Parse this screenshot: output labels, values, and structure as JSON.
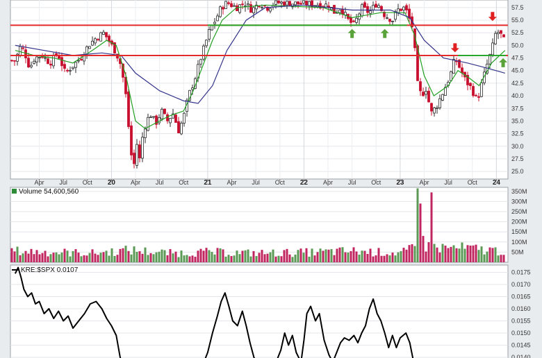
{
  "chart_data": [
    {
      "type": "candlestick",
      "panel": "price",
      "ylim": [
        23.5,
        59
      ],
      "y_ticks": [
        "25.0",
        "27.5",
        "30.0",
        "32.5",
        "35.0",
        "37.5",
        "40.0",
        "42.5",
        "45.0",
        "47.5",
        "50.0",
        "52.5",
        "55.0",
        "57.5"
      ],
      "x_labels": [
        {
          "t": 2019.25,
          "text": "Apr",
          "bold": false
        },
        {
          "t": 2019.5,
          "text": "Jul",
          "bold": false
        },
        {
          "t": 2019.75,
          "text": "Oct",
          "bold": false
        },
        {
          "t": 2020.0,
          "text": "20",
          "bold": true
        },
        {
          "t": 2020.25,
          "text": "Apr",
          "bold": false
        },
        {
          "t": 2020.5,
          "text": "Jul",
          "bold": false
        },
        {
          "t": 2020.75,
          "text": "Oct",
          "bold": false
        },
        {
          "t": 2021.0,
          "text": "21",
          "bold": true
        },
        {
          "t": 2021.25,
          "text": "Apr",
          "bold": false
        },
        {
          "t": 2021.5,
          "text": "Jul",
          "bold": false
        },
        {
          "t": 2021.75,
          "text": "Oct",
          "bold": false
        },
        {
          "t": 2022.0,
          "text": "22",
          "bold": true
        },
        {
          "t": 2022.25,
          "text": "Apr",
          "bold": false
        },
        {
          "t": 2022.5,
          "text": "Jul",
          "bold": false
        },
        {
          "t": 2022.75,
          "text": "Oct",
          "bold": false
        },
        {
          "t": 2023.0,
          "text": "23",
          "bold": true
        },
        {
          "t": 2023.25,
          "text": "Apr",
          "bold": false
        },
        {
          "t": 2023.5,
          "text": "Jul",
          "bold": false
        },
        {
          "t": 2023.75,
          "text": "Oct",
          "bold": false
        },
        {
          "t": 2024.0,
          "text": "24",
          "bold": true
        }
      ],
      "close_path": [
        [
          2019.0,
          47
        ],
        [
          2019.06,
          50
        ],
        [
          2019.1,
          48.5
        ],
        [
          2019.15,
          45.5
        ],
        [
          2019.2,
          47.5
        ],
        [
          2019.28,
          48
        ],
        [
          2019.36,
          46.5
        ],
        [
          2019.44,
          48.5
        ],
        [
          2019.52,
          44.5
        ],
        [
          2019.6,
          46
        ],
        [
          2019.68,
          47.5
        ],
        [
          2019.76,
          50
        ],
        [
          2019.84,
          51.5
        ],
        [
          2019.92,
          52.5
        ],
        [
          2019.97,
          51
        ],
        [
          2020.05,
          48.5
        ],
        [
          2020.1,
          46
        ],
        [
          2020.15,
          40
        ],
        [
          2020.2,
          29
        ],
        [
          2020.23,
          25.5
        ],
        [
          2020.26,
          31
        ],
        [
          2020.29,
          27
        ],
        [
          2020.33,
          33
        ],
        [
          2020.4,
          36.5
        ],
        [
          2020.46,
          34.5
        ],
        [
          2020.52,
          37
        ],
        [
          2020.58,
          35
        ],
        [
          2020.64,
          36.5
        ],
        [
          2020.7,
          33
        ],
        [
          2020.76,
          36.5
        ],
        [
          2020.8,
          40
        ],
        [
          2020.86,
          43
        ],
        [
          2020.92,
          47
        ],
        [
          2020.97,
          50
        ],
        [
          2021.02,
          53
        ],
        [
          2021.08,
          55
        ],
        [
          2021.14,
          57.5
        ],
        [
          2021.2,
          58.5
        ],
        [
          2021.3,
          57.5
        ],
        [
          2021.38,
          58.5
        ],
        [
          2021.46,
          57
        ],
        [
          2021.54,
          58.5
        ],
        [
          2021.62,
          57.5
        ],
        [
          2021.7,
          58.5
        ],
        [
          2022.26,
          58
        ],
        [
          2022.32,
          56.5
        ],
        [
          2022.38,
          57.5
        ],
        [
          2022.46,
          55
        ],
        [
          2022.52,
          54
        ],
        [
          2022.6,
          57.5
        ],
        [
          2022.68,
          56.5
        ],
        [
          2022.76,
          58.5
        ],
        [
          2022.84,
          56
        ],
        [
          2022.92,
          55
        ],
        [
          2022.97,
          57
        ],
        [
          2023.05,
          57.5
        ],
        [
          2023.1,
          55
        ],
        [
          2023.14,
          53
        ],
        [
          2023.17,
          43
        ],
        [
          2023.22,
          40
        ],
        [
          2023.27,
          41.5
        ],
        [
          2023.32,
          36.5
        ],
        [
          2023.38,
          38
        ],
        [
          2023.44,
          40.5
        ],
        [
          2023.52,
          44
        ],
        [
          2023.57,
          47.5
        ],
        [
          2023.62,
          45.5
        ],
        [
          2023.68,
          43
        ],
        [
          2023.74,
          41.5
        ],
        [
          2023.8,
          39
        ],
        [
          2023.85,
          42.5
        ],
        [
          2023.9,
          46
        ],
        [
          2023.95,
          49
        ],
        [
          2024.0,
          53
        ],
        [
          2024.05,
          52
        ],
        [
          2024.09,
          50.5
        ]
      ],
      "moving_averages": [
        {
          "color": "#22a022",
          "points": [
            [
              2019.0,
              49
            ],
            [
              2019.2,
              48
            ],
            [
              2019.4,
              47.5
            ],
            [
              2019.6,
              46.5
            ],
            [
              2019.8,
              49
            ],
            [
              2019.95,
              51
            ],
            [
              2020.05,
              50
            ],
            [
              2020.15,
              44
            ],
            [
              2020.25,
              35
            ],
            [
              2020.35,
              33.5
            ],
            [
              2020.5,
              35
            ],
            [
              2020.6,
              36
            ],
            [
              2020.75,
              37
            ],
            [
              2020.85,
              41
            ],
            [
              2020.95,
              46
            ],
            [
              2021.05,
              51
            ],
            [
              2021.15,
              55
            ],
            [
              2021.3,
              57.5
            ],
            [
              2021.6,
              58
            ],
            [
              2022.2,
              57.5
            ],
            [
              2022.5,
              55.5
            ],
            [
              2022.8,
              56.5
            ],
            [
              2023.05,
              56.5
            ],
            [
              2023.15,
              52
            ],
            [
              2023.25,
              44
            ],
            [
              2023.35,
              40
            ],
            [
              2023.5,
              42
            ],
            [
              2023.6,
              45
            ],
            [
              2023.72,
              43.5
            ],
            [
              2023.82,
              42
            ],
            [
              2023.95,
              46.5
            ],
            [
              2024.09,
              49
            ]
          ]
        },
        {
          "color": "#33338a",
          "points": [
            [
              2019.0,
              50
            ],
            [
              2019.3,
              49
            ],
            [
              2019.6,
              48
            ],
            [
              2019.9,
              48.5
            ],
            [
              2020.1,
              48
            ],
            [
              2020.25,
              44.5
            ],
            [
              2020.5,
              41
            ],
            [
              2020.75,
              39
            ],
            [
              2020.9,
              38.5
            ],
            [
              2021.05,
              42
            ],
            [
              2021.2,
              49
            ],
            [
              2021.4,
              55
            ],
            [
              2021.6,
              57.5
            ],
            [
              2022.0,
              58
            ],
            [
              2022.5,
              57
            ],
            [
              2022.9,
              57
            ],
            [
              2023.1,
              55.5
            ],
            [
              2023.25,
              51
            ],
            [
              2023.45,
              47.5
            ],
            [
              2023.7,
              46.5
            ],
            [
              2023.9,
              45.5
            ],
            [
              2024.09,
              44.5
            ]
          ]
        }
      ],
      "horizontal_lines": [
        {
          "value": 54.0,
          "color": "#e22a2a"
        },
        {
          "value": 54.0,
          "color": "#27a82a",
          "t_from": 2021.0,
          "t_to": 2023.07
        },
        {
          "value": 48.0,
          "color": "#e22a2a"
        },
        {
          "value": 48.0,
          "color": "#27a82a",
          "t_from": 2023.6,
          "t_to": 2024.1
        }
      ],
      "arrows": [
        {
          "t": 2022.5,
          "price": 52.3,
          "dir": "up",
          "color": "#5aa33a"
        },
        {
          "t": 2022.84,
          "price": 52.3,
          "dir": "up",
          "color": "#5aa33a"
        },
        {
          "t": 2023.57,
          "price": 49.6,
          "dir": "down",
          "color": "#e02020"
        },
        {
          "t": 2023.96,
          "price": 55.8,
          "dir": "down",
          "color": "#e02020"
        },
        {
          "t": 2024.07,
          "price": 46.5,
          "dir": "up",
          "color": "#5aa33a"
        }
      ]
    },
    {
      "type": "bar",
      "panel": "volume",
      "title": "Volume 54,600,560",
      "ylim": [
        0,
        370
      ],
      "y_ticks": [
        "50M",
        "100M",
        "150M",
        "200M",
        "250M",
        "300M",
        "350M"
      ],
      "base_level": [
        [
          2019.0,
          55
        ],
        [
          2019.8,
          45
        ],
        [
          2020.2,
          60
        ],
        [
          2020.6,
          45
        ],
        [
          2021.0,
          50
        ],
        [
          2021.5,
          45
        ],
        [
          2022.0,
          48
        ],
        [
          2022.5,
          55
        ],
        [
          2023.0,
          45
        ],
        [
          2023.2,
          75
        ],
        [
          2023.6,
          70
        ],
        [
          2024.1,
          55
        ]
      ],
      "spikes": [
        [
          2023.17,
          365
        ],
        [
          2023.2,
          290
        ],
        [
          2023.33,
          345
        ],
        [
          2023.22,
          180
        ],
        [
          2023.25,
          130
        ],
        [
          2023.4,
          120
        ]
      ]
    },
    {
      "type": "line",
      "panel": "ratio",
      "title": "KRE:$SPX 0.0107",
      "ylim": [
        0.0138,
        0.0178
      ],
      "y_ticks": [
        "0.0140",
        "0.0145",
        "0.0150",
        "0.0155",
        "0.0160",
        "0.0165",
        "0.0170",
        "0.0175"
      ],
      "series": [
        {
          "points": [
            [
              2019.0,
              0.01745
            ],
            [
              2019.03,
              0.0177
            ],
            [
              2019.06,
              0.0173
            ],
            [
              2019.09,
              0.0168
            ],
            [
              2019.13,
              0.0165
            ],
            [
              2019.17,
              0.01665
            ],
            [
              2019.21,
              0.0162
            ],
            [
              2019.25,
              0.0163
            ],
            [
              2019.3,
              0.0158
            ],
            [
              2019.35,
              0.016
            ],
            [
              2019.4,
              0.0156
            ],
            [
              2019.45,
              0.0159
            ],
            [
              2019.5,
              0.0155
            ],
            [
              2019.55,
              0.0157
            ],
            [
              2019.6,
              0.0152
            ],
            [
              2019.66,
              0.0155
            ],
            [
              2019.72,
              0.0158
            ],
            [
              2019.78,
              0.0162
            ],
            [
              2019.84,
              0.0163
            ],
            [
              2019.9,
              0.016
            ],
            [
              2019.95,
              0.0156
            ],
            [
              2020.0,
              0.0153
            ],
            [
              2020.05,
              0.0149
            ],
            [
              2020.09,
              0.014
            ],
            [
              2020.12,
              0.0137
            ],
            [
              2020.5,
              0.0137
            ],
            [
              2020.95,
              0.0137
            ],
            [
              2021.0,
              0.0142
            ],
            [
              2021.05,
              0.015
            ],
            [
              2021.1,
              0.0157
            ],
            [
              2021.14,
              0.0163
            ],
            [
              2021.18,
              0.01665
            ],
            [
              2021.22,
              0.0161
            ],
            [
              2021.26,
              0.0155
            ],
            [
              2021.31,
              0.0153
            ],
            [
              2021.36,
              0.0159
            ],
            [
              2021.4,
              0.0153
            ],
            [
              2021.44,
              0.0146
            ],
            [
              2021.48,
              0.014
            ],
            [
              2021.52,
              0.0137
            ],
            [
              2021.7,
              0.0137
            ],
            [
              2021.76,
              0.0143
            ],
            [
              2021.8,
              0.015
            ],
            [
              2021.84,
              0.0145
            ],
            [
              2021.88,
              0.0149
            ],
            [
              2021.92,
              0.0142
            ],
            [
              2021.97,
              0.0138
            ],
            [
              2022.0,
              0.0147
            ],
            [
              2022.03,
              0.0158
            ],
            [
              2022.07,
              0.0161
            ],
            [
              2022.12,
              0.0155
            ],
            [
              2022.16,
              0.0158
            ],
            [
              2022.21,
              0.0147
            ],
            [
              2022.26,
              0.0141
            ],
            [
              2022.3,
              0.0138
            ],
            [
              2022.34,
              0.0142
            ],
            [
              2022.38,
              0.0146
            ],
            [
              2022.42,
              0.0148
            ],
            [
              2022.47,
              0.0147
            ],
            [
              2022.52,
              0.0149
            ],
            [
              2022.56,
              0.0146
            ],
            [
              2022.6,
              0.015
            ],
            [
              2022.64,
              0.0153
            ],
            [
              2022.68,
              0.016
            ],
            [
              2022.72,
              0.0164
            ],
            [
              2022.76,
              0.0158
            ],
            [
              2022.8,
              0.0155
            ],
            [
              2022.84,
              0.015
            ],
            [
              2022.88,
              0.0144
            ],
            [
              2022.92,
              0.0149
            ],
            [
              2022.96,
              0.0144
            ],
            [
              2023.0,
              0.0148
            ],
            [
              2023.06,
              0.015
            ],
            [
              2023.1,
              0.0146
            ],
            [
              2023.14,
              0.0138
            ]
          ]
        }
      ]
    }
  ]
}
